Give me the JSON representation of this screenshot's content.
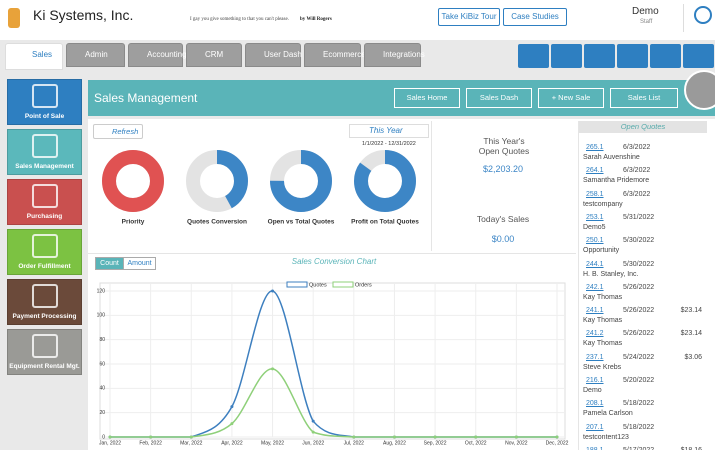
{
  "header": {
    "company": "Ki Systems, Inc.",
    "quote": "I gay you give something to that you can't please.",
    "quote_author": "by Will Rogers",
    "buttons": [
      "Take KiBiz Tour",
      "Case Studies"
    ],
    "user": "Demo",
    "role": "Staff"
  },
  "tabs": [
    "Sales",
    "Admin",
    "Accounting",
    "CRM",
    "User Dash",
    "Ecommerce",
    "Integrations"
  ],
  "sidebar": [
    {
      "label": "Point of Sale",
      "color": "#2e7fc1"
    },
    {
      "label": "Sales Management",
      "color": "#5bb8bb"
    },
    {
      "label": "Purchasing",
      "color": "#c9504f"
    },
    {
      "label": "Order Fulfillment",
      "color": "#7cc242"
    },
    {
      "label": "Payment Processing",
      "color": "#6b4a3a"
    },
    {
      "label": "Equipment Rental Mgt.",
      "color": "#9a9a96"
    }
  ],
  "panel": {
    "title": "Sales Management",
    "buttons": [
      "Sales Home",
      "Sales Dash",
      "+ New Sale",
      "Sales List"
    ]
  },
  "filters": {
    "refresh": "Refresh",
    "period": "This Year",
    "range": "1/1/2022 - 12/31/2022"
  },
  "donuts": [
    {
      "label": "Priority",
      "value": 100,
      "color": "#e05252"
    },
    {
      "label": "Quotes Conversion",
      "value": 42,
      "color": "#3d86c6"
    },
    {
      "label": "Open vs Total Quotes",
      "value": 75,
      "color": "#3d86c6"
    },
    {
      "label": "Profit on Total Quotes",
      "value": 85,
      "color": "#3d86c6"
    }
  ],
  "summary": [
    {
      "label": "This Year's Open Quotes",
      "value": "$2,203.20"
    },
    {
      "label": "Today's Sales",
      "value": "$0.00"
    }
  ],
  "open_quotes": {
    "title": "Open Quotes",
    "rows": [
      {
        "number": "265.1",
        "date": "6/3/2022",
        "name": "Sarah Auvenshine"
      },
      {
        "number": "264.1",
        "date": "6/3/2022",
        "name": "Samantha Pridemore"
      },
      {
        "number": "258.1",
        "date": "6/3/2022",
        "name": "testcompany"
      },
      {
        "number": "253.1",
        "date": "5/31/2022",
        "name": "Demo5"
      },
      {
        "number": "250.1",
        "date": "5/30/2022",
        "name": "Opportunity"
      },
      {
        "number": "244.1",
        "date": "5/30/2022",
        "name": "H. B. Stanley, Inc."
      },
      {
        "number": "242.1",
        "date": "5/26/2022",
        "name": "Kay Thomas"
      },
      {
        "number": "241.1",
        "date": "5/26/2022",
        "amount": "$23.14",
        "name": "Kay Thomas"
      },
      {
        "number": "241.2",
        "date": "5/26/2022",
        "amount": "$23.14",
        "name": "Kay Thomas"
      },
      {
        "number": "237.1",
        "date": "5/24/2022",
        "amount": "$3.06",
        "name": "Steve Krebs"
      },
      {
        "number": "216.1",
        "date": "5/20/2022",
        "name": "Demo"
      },
      {
        "number": "208.1",
        "date": "5/18/2022",
        "name": "Pamela Carlson"
      },
      {
        "number": "207.1",
        "date": "5/18/2022",
        "name": "testcontent123"
      },
      {
        "number": "188.1",
        "date": "5/17/2022",
        "amount": "$18.16",
        "name": ""
      }
    ]
  },
  "chart_data": {
    "type": "line",
    "title": "Sales Conversion Chart",
    "toggles": [
      "Count",
      "Amount"
    ],
    "categories": [
      "Jan, 2022",
      "Feb, 2022",
      "Mar, 2022",
      "Apr, 2022",
      "May, 2022",
      "Jun, 2022",
      "Jul, 2022",
      "Aug, 2022",
      "Sep, 2022",
      "Oct, 2022",
      "Nov, 2022",
      "Dec, 2022"
    ],
    "series": [
      {
        "name": "Quotes",
        "color": "#3d7fbf",
        "values": [
          0,
          0,
          0,
          25,
          120,
          13,
          0,
          0,
          0,
          0,
          0,
          0
        ]
      },
      {
        "name": "Orders",
        "color": "#8fd07a",
        "values": [
          0,
          0,
          0,
          11,
          56,
          4,
          0,
          0,
          0,
          0,
          0,
          0
        ]
      }
    ],
    "ylim": [
      0,
      120
    ],
    "yticks": [
      0,
      20,
      40,
      60,
      80,
      100,
      120
    ],
    "grid": true
  }
}
